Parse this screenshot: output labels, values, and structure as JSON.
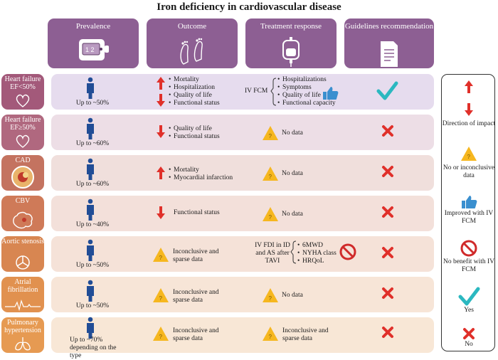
{
  "title": "Iron deficiency in cardiovascular disease",
  "columns": [
    {
      "label": "Prevalence",
      "icon": "infusion-pump-icon"
    },
    {
      "label": "Outcome",
      "icon": "footprints-icon"
    },
    {
      "label": "Treatment response",
      "icon": "iv-bag-icon"
    },
    {
      "label": "Guidelines recommendation",
      "icon": "document-icon"
    }
  ],
  "rows": [
    {
      "label": "Heart failure EF<50%",
      "prevalence": "Up to ~50%",
      "outcome_up": [
        "Mortality",
        "Hospitalization",
        "Quality of life"
      ],
      "outcome_down": [
        "Functional status"
      ],
      "treatment_prefix": "IV FCM",
      "treatment_items": [
        "Hospitalizations",
        "Symptoms",
        "Quality of life",
        "Functional capacity"
      ],
      "guideline": "check"
    },
    {
      "label": "Heart failure EF≥50%",
      "prevalence": "Up to ~60%",
      "outcome_down": [
        "Quality of life",
        "Functional status"
      ],
      "treatment_text": "No data",
      "guideline": "cross"
    },
    {
      "label": "CAD",
      "prevalence": "Up to ~60%",
      "outcome_up": [
        "Mortality",
        "Myocardial infarction"
      ],
      "treatment_text": "No data",
      "guideline": "cross"
    },
    {
      "label": "CBV",
      "prevalence": "Up to ~40%",
      "outcome_down_text": "Functional status",
      "treatment_text": "No data",
      "guideline": "cross"
    },
    {
      "label": "Aortic stenosis",
      "prevalence": "Up to ~50%",
      "outcome_text": "Inconclusive and sparse data",
      "treatment_prefix": "IV FDI in ID and AS after TAVI",
      "treatment_items": [
        "6MWD",
        "NYHA class",
        "HRQoL"
      ],
      "guideline": "cross"
    },
    {
      "label": "Atrial fibrillation",
      "prevalence": "Up to ~50%",
      "outcome_text": "Inconclusive and sparse data",
      "treatment_text": "No data",
      "guideline": "cross"
    },
    {
      "label": "Pulmonary hypertension",
      "prevalence": "Up to ~70% depending on the type",
      "outcome_text": "Inconclusive and sparse data",
      "treatment_text": "Inconclusive and sparse data",
      "guideline": "cross"
    }
  ],
  "legend": [
    {
      "icon": "up-down-arrows-icon",
      "label": "Direction of impact"
    },
    {
      "icon": "warning-icon",
      "label": "No or inconclusive data"
    },
    {
      "icon": "thumbs-up-icon",
      "label": "Improved with IV FCM"
    },
    {
      "icon": "no-sign-icon",
      "label": "No benefit with IV FCM"
    },
    {
      "icon": "check-icon",
      "label": "Yes"
    },
    {
      "icon": "cross-icon",
      "label": "No"
    }
  ],
  "colors": {
    "header": "#8d5f93",
    "row_labels": [
      "#a3597a",
      "#b0687f",
      "#c47360",
      "#cf7a58",
      "#d88651",
      "#e1914f",
      "#e69a52"
    ],
    "row_bands": [
      "#e6dcee",
      "#eddee6",
      "#f0dfdc",
      "#f3e0da",
      "#f5e2d8",
      "#f7e5d7",
      "#f8e7d6"
    ],
    "arrow": "#e0302a",
    "check": "#2bb8c0",
    "cross": "#e0302a",
    "warning": "#f6b71f",
    "person": "#214d96"
  }
}
